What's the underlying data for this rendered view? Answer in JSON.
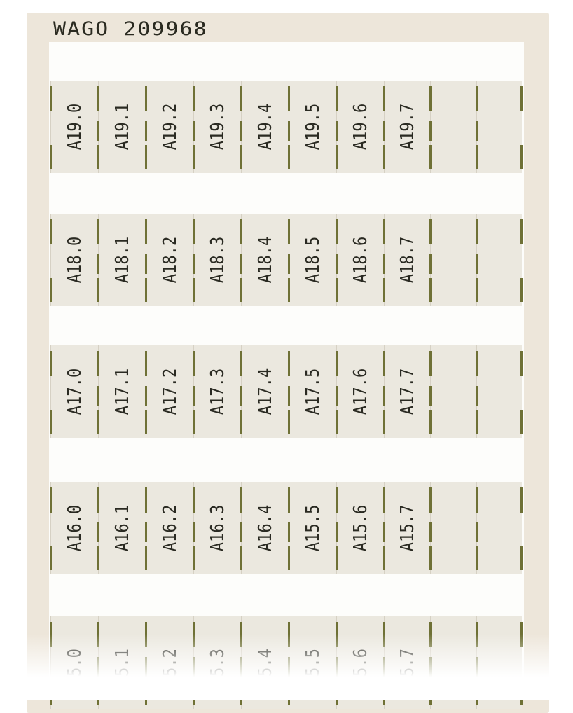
{
  "header": {
    "title": "WAGO 209968"
  },
  "rows": [
    [
      "A19.0",
      "A19.1",
      "A19.2",
      "A19.3",
      "A19.4",
      "A19.5",
      "A19.6",
      "A19.7",
      "",
      ""
    ],
    [
      "A18.0",
      "A18.1",
      "A18.2",
      "A18.3",
      "A18.4",
      "A18.5",
      "A18.6",
      "A18.7",
      "",
      ""
    ],
    [
      "A17.0",
      "A17.1",
      "A17.2",
      "A17.3",
      "A17.4",
      "A17.5",
      "A17.6",
      "A17.7",
      "",
      ""
    ],
    [
      "A16.0",
      "A16.1",
      "A16.2",
      "A16.3",
      "A16.4",
      "A15.5",
      "A15.6",
      "A15.7",
      "",
      ""
    ],
    [
      "5.0",
      "5.1",
      "5.2",
      "5.3",
      "5.4",
      "5.5",
      "5.6",
      "5.7",
      "",
      ""
    ]
  ],
  "colors": {
    "card": "#ede6da",
    "marker": "#ebe8df",
    "tick": "#6f7136"
  }
}
